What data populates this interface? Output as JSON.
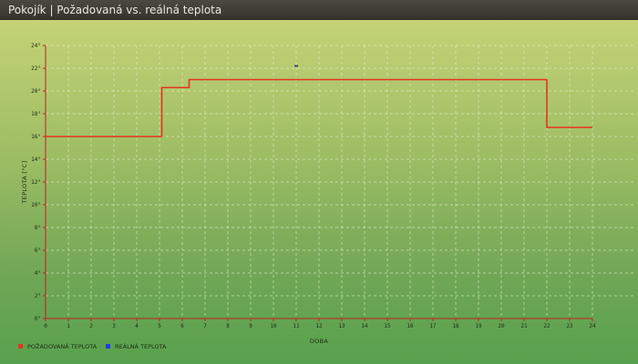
{
  "window": {
    "title": "Pokojík | Požadovaná vs. reálná teplota"
  },
  "colors": {
    "required": "#e8321e",
    "real": "#1f3fe0",
    "grid": "#eef2d8",
    "axis": "#c02020"
  },
  "chart_data": {
    "type": "line",
    "xlabel": "DOBA",
    "ylabel": "TEPLOTA [°C]",
    "xlim": [
      0,
      24
    ],
    "ylim": [
      0,
      24
    ],
    "x_ticks": [
      "0",
      "1",
      "2",
      "3",
      "4",
      "5",
      "6",
      "7",
      "8",
      "9",
      "10",
      "11",
      "12",
      "13",
      "14",
      "15",
      "16",
      "17",
      "18",
      "19",
      "20",
      "21",
      "22",
      "23",
      "24"
    ],
    "y_ticks": [
      "0°",
      "2°",
      "4°",
      "6°",
      "8°",
      "10°",
      "12°",
      "14°",
      "16°",
      "18°",
      "20°",
      "22°",
      "24°"
    ],
    "grid": true,
    "legend_position": "bottom-left",
    "series": [
      {
        "name": "POŽADOVANÁ TEPLOTA",
        "color": "#e8321e",
        "step": true,
        "points": [
          [
            0,
            16
          ],
          [
            5.1,
            16
          ],
          [
            5.1,
            20.3
          ],
          [
            6.3,
            20.3
          ],
          [
            6.3,
            21
          ],
          [
            22,
            21
          ],
          [
            22,
            16.8
          ],
          [
            24,
            16.8
          ]
        ]
      },
      {
        "name": "REÁLNÁ TEPLOTA",
        "color": "#1f3fe0",
        "points": [
          [
            11,
            22.2
          ]
        ]
      }
    ]
  }
}
